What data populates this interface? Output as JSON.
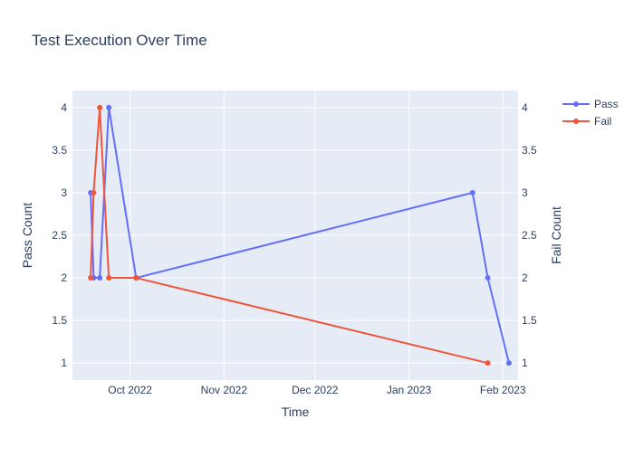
{
  "chart_data": {
    "type": "line",
    "title": "Test Execution Over Time",
    "xlabel": "Time",
    "ylabel_left": "Pass Count",
    "ylabel_right": "Fail Count",
    "x_ticks": [
      {
        "date": "2022-10-01",
        "label": "Oct 2022"
      },
      {
        "date": "2022-11-01",
        "label": "Nov 2022"
      },
      {
        "date": "2022-12-01",
        "label": "Dec 2022"
      },
      {
        "date": "2023-01-01",
        "label": "Jan 2023"
      },
      {
        "date": "2023-02-01",
        "label": "Feb 2023"
      }
    ],
    "xlim": [
      "2022-09-12",
      "2023-02-06"
    ],
    "ylim": [
      0.8,
      4.2
    ],
    "y_ticks": [
      1,
      1.5,
      2,
      2.5,
      3,
      3.5,
      4
    ],
    "y_tick_labels": [
      "1",
      "1.5",
      "2",
      "2.5",
      "3",
      "3.5",
      "4"
    ],
    "grid": true,
    "legend_position": "top-right",
    "series": [
      {
        "name": "Pass",
        "color": "#636efa",
        "axis": "left",
        "points": [
          {
            "x": "2022-09-18",
            "y": 3
          },
          {
            "x": "2022-09-19",
            "y": 2
          },
          {
            "x": "2022-09-21",
            "y": 2
          },
          {
            "x": "2022-09-24",
            "y": 4
          },
          {
            "x": "2022-10-03",
            "y": 2
          },
          {
            "x": "2023-01-22",
            "y": 3
          },
          {
            "x": "2023-01-27",
            "y": 2
          },
          {
            "x": "2023-02-03",
            "y": 1
          }
        ]
      },
      {
        "name": "Fail",
        "color": "#ef553b",
        "axis": "right",
        "points": [
          {
            "x": "2022-09-18",
            "y": 2
          },
          {
            "x": "2022-09-19",
            "y": 3
          },
          {
            "x": "2022-09-21",
            "y": 4
          },
          {
            "x": "2022-09-24",
            "y": 2
          },
          {
            "x": "2022-10-03",
            "y": 2
          },
          {
            "x": "2023-01-27",
            "y": 1
          }
        ]
      }
    ]
  }
}
